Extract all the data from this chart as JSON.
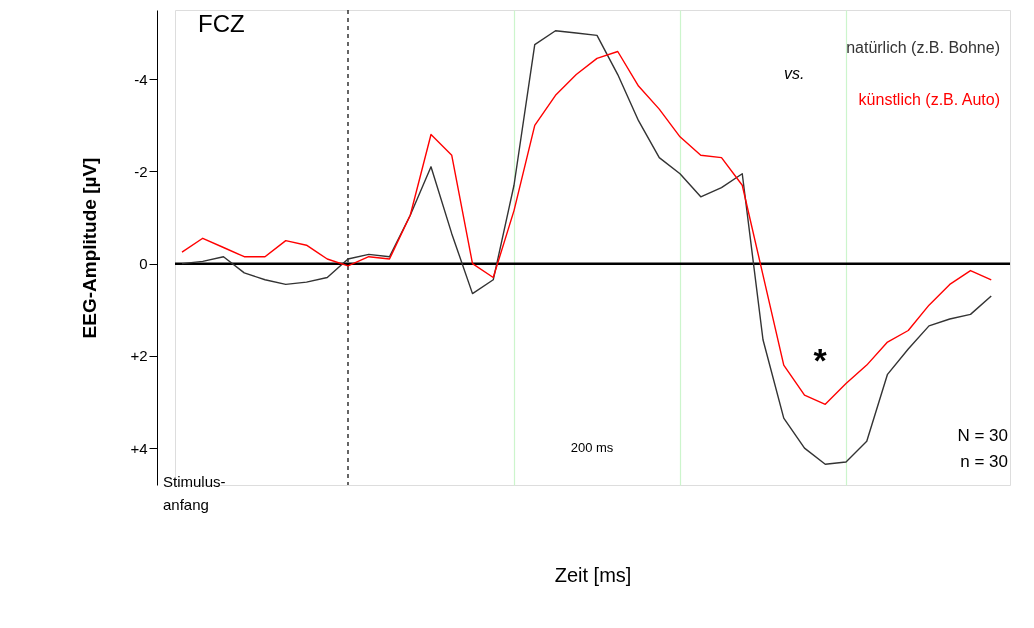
{
  "chart_data": {
    "type": "line",
    "title": "FCZ",
    "xlabel": "Zeit [ms]",
    "ylabel": "EEG-Amplitude [µV]",
    "categories": [
      null,
      null,
      null,
      null,
      null,
      null,
      null,
      null,
      null,
      null,
      null,
      null,
      null,
      null,
      null,
      null,
      null,
      null,
      null,
      null,
      null,
      null,
      null,
      null,
      null,
      null,
      null,
      null,
      null,
      null,
      null,
      null,
      null,
      null,
      null,
      null,
      null,
      null,
      null,
      null
    ],
    "series": [
      {
        "name": "natürlich (z.B. Bohne)",
        "color": "#333333",
        "values": [
          0.0,
          -0.05,
          -0.15,
          0.2,
          0.35,
          0.45,
          0.4,
          0.3,
          -0.1,
          -0.2,
          -0.15,
          -1.05,
          -2.1,
          -0.65,
          0.65,
          0.35,
          -1.7,
          -4.75,
          -5.05,
          -5.0,
          -4.95,
          -4.1,
          -3.1,
          -2.3,
          -1.95,
          -1.45,
          -1.65,
          -1.95,
          1.65,
          3.35,
          4.0,
          4.35,
          4.3,
          3.85,
          2.4,
          1.85,
          1.35,
          1.2,
          1.1,
          0.7
        ]
      },
      {
        "name": "künstlich (z.B. Auto)",
        "color": "#ff0000",
        "values": [
          -0.25,
          -0.55,
          -0.35,
          -0.15,
          -0.15,
          -0.5,
          -0.4,
          -0.1,
          0.05,
          -0.15,
          -0.1,
          -1.05,
          -2.8,
          -2.35,
          0.0,
          0.3,
          -1.15,
          -3.0,
          -3.65,
          -4.1,
          -4.45,
          -4.6,
          -3.85,
          -3.35,
          -2.75,
          -2.35,
          -2.3,
          -1.7,
          0.25,
          2.2,
          2.85,
          3.05,
          2.6,
          2.2,
          1.7,
          1.45,
          0.9,
          0.45,
          0.15,
          0.35
        ]
      }
    ],
    "ylim": [
      4.8,
      -5.5
    ],
    "yticks": [
      -4,
      -2,
      0,
      {
        "value": 2,
        "label": "+2"
      },
      {
        "value": 4,
        "label": "+4"
      }
    ],
    "ref_lines": [
      {
        "axis": "y",
        "value": 0,
        "color": "#000000",
        "line_style": "solid"
      }
    ],
    "annotations": [
      "vs.",
      "*",
      "N = 30\nn = 30",
      "Stimulus-\nanfang",
      "200 ms"
    ],
    "legend": "top right",
    "grid": "x",
    "tick_labels": "y",
    "marker": "none",
    "line_style": "solid"
  }
}
